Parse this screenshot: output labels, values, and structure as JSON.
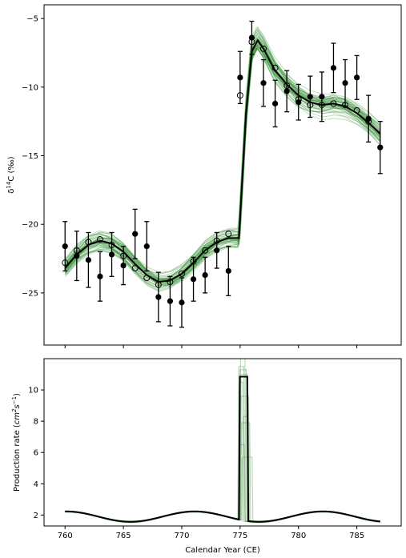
{
  "chart_data": [
    {
      "type": "line",
      "ylabel_parts": {
        "delta": "δ",
        "sup": "14",
        "rest": "C (‰)"
      },
      "xlim": [
        758.2,
        788.8
      ],
      "ylim": [
        -28.8,
        -4.0
      ],
      "xticks": [
        760,
        765,
        770,
        775,
        780,
        785
      ],
      "show_xtick_labels": false,
      "yticks": [
        -25,
        -20,
        -15,
        -10,
        -5
      ],
      "ytick_labels": [
        "−25",
        "−20",
        "−15",
        "−10",
        "−5"
      ],
      "colors": {
        "ensemble": "#2e8b2e",
        "model": "#000000",
        "observed": "#000000"
      },
      "model_line": {
        "x": [
          760,
          761,
          762,
          763,
          764,
          765,
          766,
          767,
          768,
          769,
          770,
          771,
          772,
          773,
          774,
          774.9,
          775.5,
          776,
          776.5,
          777,
          778,
          779,
          780,
          781,
          782,
          783,
          784,
          785,
          786,
          787
        ],
        "y": [
          -23.2,
          -22.2,
          -21.5,
          -21.2,
          -21.4,
          -22.0,
          -22.9,
          -23.7,
          -24.2,
          -24.1,
          -23.6,
          -22.8,
          -21.9,
          -21.3,
          -21.0,
          -21.0,
          -12.0,
          -7.4,
          -6.6,
          -7.2,
          -8.8,
          -9.8,
          -10.6,
          -11.1,
          -11.3,
          -11.2,
          -11.4,
          -11.9,
          -12.6,
          -13.4
        ]
      },
      "ensemble_spread": [
        0.4,
        0.6
      ],
      "ensemble_count": 45,
      "observed": {
        "marker": "filled-circle",
        "x": [
          760,
          761,
          762,
          763,
          764,
          765,
          766,
          767,
          768,
          769,
          770,
          771,
          772,
          773,
          774,
          775,
          776,
          777,
          778,
          779,
          780,
          781,
          782,
          783,
          784,
          785,
          786,
          787
        ],
        "y": [
          -21.6,
          -22.3,
          -22.6,
          -23.8,
          -22.2,
          -23.0,
          -20.7,
          -21.6,
          -25.3,
          -25.6,
          -25.7,
          -24.0,
          -23.7,
          -21.9,
          -23.4,
          -9.3,
          -6.4,
          -9.7,
          -11.2,
          -10.3,
          -11.1,
          -10.7,
          -10.7,
          -8.6,
          -9.7,
          -9.3,
          -12.3,
          -14.4
        ],
        "err": [
          1.8,
          1.8,
          2.0,
          1.8,
          1.6,
          1.4,
          1.8,
          1.8,
          1.8,
          1.8,
          1.8,
          1.6,
          1.3,
          1.3,
          1.8,
          1.9,
          1.2,
          1.7,
          1.7,
          1.5,
          1.3,
          1.5,
          1.8,
          1.8,
          1.7,
          1.6,
          1.7,
          1.9
        ]
      },
      "model_points": {
        "marker": "open-circle",
        "x": [
          760,
          761,
          762,
          763,
          764,
          765,
          766,
          767,
          768,
          769,
          770,
          771,
          772,
          773,
          774,
          775,
          776,
          777,
          778,
          779,
          780,
          781,
          782,
          783,
          784,
          785,
          786
        ],
        "y": [
          -22.8,
          -21.9,
          -21.3,
          -21.1,
          -21.5,
          -22.3,
          -23.2,
          -23.9,
          -24.4,
          -24.2,
          -23.6,
          -22.7,
          -21.9,
          -21.2,
          -20.7,
          -10.6,
          -6.7,
          -7.2,
          -8.6,
          -9.9,
          -10.9,
          -11.3,
          -11.3,
          -11.2,
          -11.3,
          -11.7,
          -12.5
        ]
      }
    },
    {
      "type": "line",
      "xlabel": "Calendar Year (CE)",
      "ylabel_parts": {
        "main": "Production rate (",
        "var": "cm",
        "sup1": "2",
        "s": "s",
        "sup2": "−1",
        "close": ")"
      },
      "xlim": [
        758.2,
        788.8
      ],
      "ylim": [
        1.3,
        12.0
      ],
      "xticks": [
        760,
        765,
        770,
        775,
        780,
        785
      ],
      "yticks": [
        2,
        4,
        6,
        8,
        10
      ],
      "colors": {
        "ensemble": "#2e8b2e",
        "model": "#000000"
      },
      "baseline": {
        "mean": 1.9,
        "amplitude": 0.33,
        "period": 11,
        "phase_year": 771.1
      },
      "spike": {
        "start": 774.9,
        "end": 775.7,
        "peak": 10.85
      },
      "ensemble_spikes": [
        {
          "start": 774.8,
          "end": 775.4,
          "peak": 11.5
        },
        {
          "start": 774.9,
          "end": 775.6,
          "peak": 11.3
        },
        {
          "start": 775.0,
          "end": 775.8,
          "peak": 9.6
        },
        {
          "start": 774.95,
          "end": 775.5,
          "peak": 12.0
        },
        {
          "start": 775.05,
          "end": 775.9,
          "peak": 7.9
        },
        {
          "start": 775.1,
          "end": 776.1,
          "peak": 5.7
        },
        {
          "start": 774.85,
          "end": 775.3,
          "peak": 10.5
        },
        {
          "start": 775.0,
          "end": 775.7,
          "peak": 11.0
        },
        {
          "start": 775.2,
          "end": 775.75,
          "peak": 8.3
        },
        {
          "start": 774.9,
          "end": 775.45,
          "peak": 6.5
        }
      ],
      "xtick_labels": [
        "760",
        "765",
        "770",
        "775",
        "780",
        "785"
      ],
      "ytick_labels": [
        "2",
        "4",
        "6",
        "8",
        "10"
      ]
    }
  ]
}
